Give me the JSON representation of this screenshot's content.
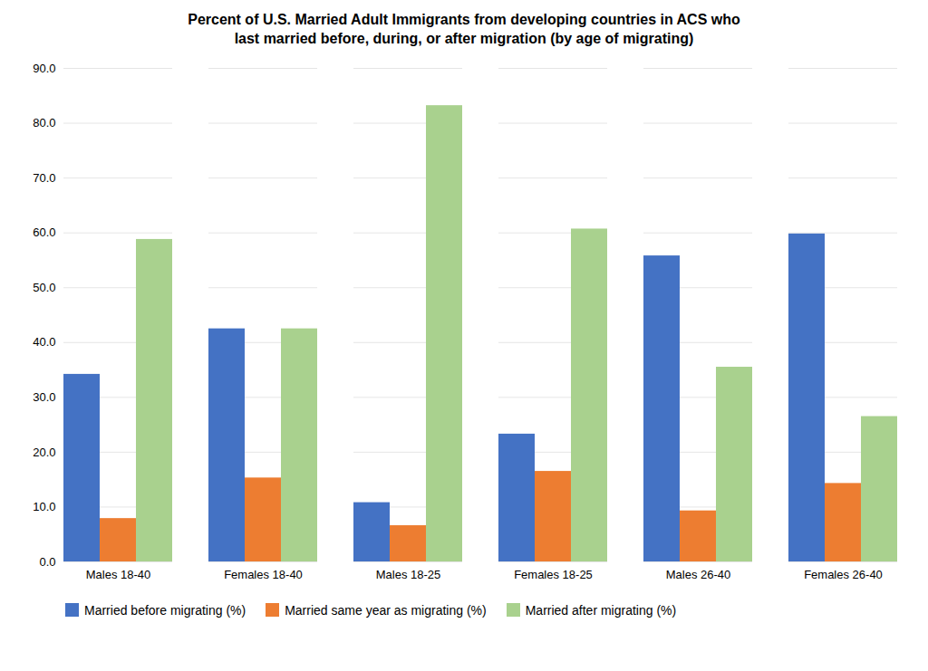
{
  "chart_data": {
    "type": "bar",
    "title": "Percent of U.S. Married Adult Immigrants from developing countries in ACS who\nlast married before, during, or after migration (by age of migrating)",
    "categories": [
      "Males 18-40",
      "Females 18-40",
      "Males 18-25",
      "Females 18-25",
      "Males 26-40",
      "Females 26-40"
    ],
    "series": [
      {
        "name": "Married before migrating (%)",
        "color": "#4472C4",
        "values": [
          34.2,
          42.5,
          10.8,
          23.3,
          55.8,
          59.8
        ]
      },
      {
        "name": "Married same year as migrating (%)",
        "color": "#ED7D31",
        "values": [
          7.9,
          15.3,
          6.6,
          16.5,
          9.3,
          14.3
        ]
      },
      {
        "name": "Married after migrating (%)",
        "color": "#A9D18E",
        "values": [
          58.8,
          42.5,
          83.2,
          60.7,
          35.5,
          26.5
        ]
      }
    ],
    "ylim": [
      0,
      90.0
    ],
    "yticks": [
      {
        "value": 0.0,
        "label": "0.0"
      },
      {
        "value": 10.0,
        "label": "10.0"
      },
      {
        "value": 20.0,
        "label": "20.0"
      },
      {
        "value": 30.0,
        "label": "30.0"
      },
      {
        "value": 40.0,
        "label": "40.0"
      },
      {
        "value": 50.0,
        "label": "50.0"
      },
      {
        "value": 60.0,
        "label": "60.0"
      },
      {
        "value": 70.0,
        "label": "70.0"
      },
      {
        "value": 80.0,
        "label": "80.0"
      },
      {
        "value": 90.0,
        "label": "90.0"
      }
    ],
    "grid": true,
    "legend": "lower left"
  }
}
